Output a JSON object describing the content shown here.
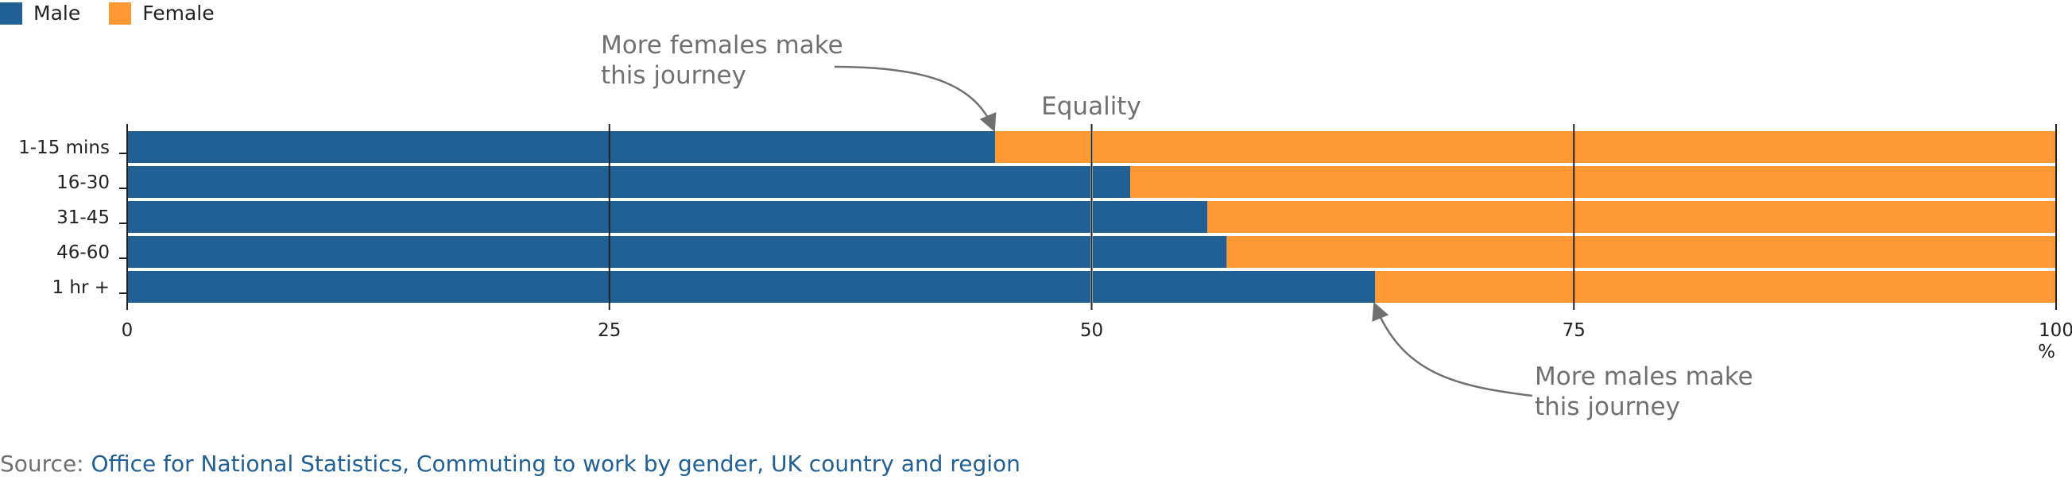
{
  "legend": {
    "male_label": "Male",
    "female_label": "Female"
  },
  "colors": {
    "male": "#206095",
    "female": "#FF9933",
    "axis": "#222222",
    "annotation": "#707070",
    "gridline_equality": "#ffffff"
  },
  "annotations": {
    "equality": "Equality",
    "females_line1": "More females make",
    "females_line2": "this journey",
    "males_line1": "More males make",
    "males_line2": "this journey"
  },
  "source": {
    "prefix": "Source: ",
    "link_text": "Office for National Statistics, Commuting to work by gender, UK country and region"
  },
  "chart_data": {
    "type": "bar",
    "orientation": "horizontal",
    "stacked": true,
    "categories": [
      "1-15 mins",
      "16-30",
      "31-45",
      "46-60",
      "1 hr +"
    ],
    "series": [
      {
        "name": "Male",
        "values": [
          45,
          52,
          56,
          57,
          64.7
        ]
      },
      {
        "name": "Female",
        "values": [
          55,
          48,
          44,
          43,
          35.3
        ]
      }
    ],
    "xlim": [
      0,
      100
    ],
    "xticks": [
      0,
      25,
      50,
      75,
      100
    ],
    "xunit": "%",
    "legend_position": "top-left",
    "grid": false
  }
}
